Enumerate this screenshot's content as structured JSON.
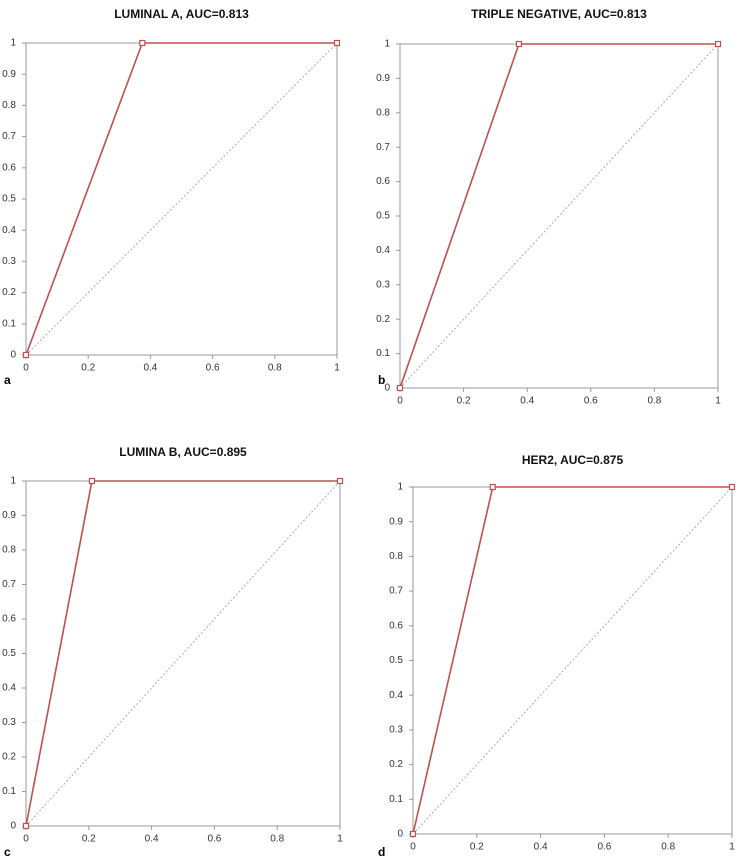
{
  "chart_data": [
    {
      "type": "line",
      "title": "LUMINAL A,  AUC=0.813",
      "panel_label": "a",
      "x": [
        0,
        0.374,
        1
      ],
      "values": [
        0,
        1,
        1
      ],
      "color": "#c0504d",
      "reference_line": {
        "x": [
          0,
          1
        ],
        "values": [
          0,
          1
        ],
        "color": "#aaaaaa"
      },
      "xlim": [
        0,
        1
      ],
      "ylim": [
        0,
        1
      ],
      "xticks": [
        0,
        0.2,
        0.4,
        0.6,
        0.8,
        1
      ],
      "yticks": [
        0,
        0.1,
        0.2,
        0.3,
        0.4,
        0.5,
        0.6,
        0.7,
        0.8,
        0.9,
        1
      ]
    },
    {
      "type": "line",
      "title": "TRIPLE NEGATIVE,  AUC=0.813",
      "panel_label": "b",
      "x": [
        0,
        0.374,
        1
      ],
      "values": [
        0,
        1,
        1
      ],
      "color": "#c0504d",
      "reference_line": {
        "x": [
          0,
          1
        ],
        "values": [
          0,
          1
        ],
        "color": "#aaaaaa"
      },
      "xlim": [
        0,
        1
      ],
      "ylim": [
        0,
        1
      ],
      "xticks": [
        0,
        0.2,
        0.4,
        0.6,
        0.8,
        1
      ],
      "yticks": [
        0,
        0.1,
        0.2,
        0.3,
        0.4,
        0.5,
        0.6,
        0.7,
        0.8,
        0.9,
        1
      ]
    },
    {
      "type": "line",
      "title": "LUMINA B,  AUC=0.895",
      "panel_label": "c",
      "x": [
        0,
        0.21,
        1
      ],
      "values": [
        0,
        1,
        1
      ],
      "color": "#c0504d",
      "reference_line": {
        "x": [
          0,
          1
        ],
        "values": [
          0,
          1
        ],
        "color": "#aaaaaa"
      },
      "xlim": [
        0,
        1
      ],
      "ylim": [
        0,
        1
      ],
      "xticks": [
        0,
        0.2,
        0.4,
        0.6,
        0.8,
        1
      ],
      "yticks": [
        0,
        0.1,
        0.2,
        0.3,
        0.4,
        0.5,
        0.6,
        0.7,
        0.8,
        0.9,
        1
      ]
    },
    {
      "type": "line",
      "title": "HER2,  AUC=0.875",
      "panel_label": "d",
      "x": [
        0,
        0.25,
        1
      ],
      "values": [
        0,
        1,
        1
      ],
      "color": "#c0504d",
      "reference_line": {
        "x": [
          0,
          1
        ],
        "values": [
          0,
          1
        ],
        "color": "#aaaaaa"
      },
      "xlim": [
        0,
        1
      ],
      "ylim": [
        0,
        1
      ],
      "xticks": [
        0,
        0.2,
        0.4,
        0.6,
        0.8,
        1
      ],
      "yticks": [
        0,
        0.1,
        0.2,
        0.3,
        0.4,
        0.5,
        0.6,
        0.7,
        0.8,
        0.9,
        1
      ]
    }
  ]
}
